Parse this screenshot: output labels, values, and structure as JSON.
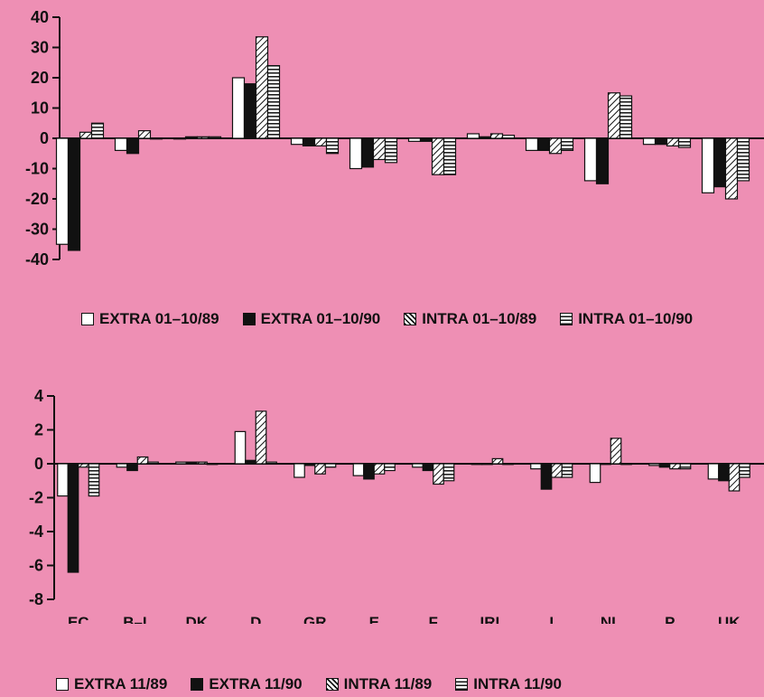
{
  "chart_data": [
    {
      "type": "bar",
      "categories": [
        "EC",
        "B–L",
        "DK",
        "D",
        "GR",
        "E",
        "F",
        "IRL",
        "I",
        "NL",
        "P",
        "UK"
      ],
      "ylim": [
        -40,
        40
      ],
      "yticks": [
        40,
        30,
        20,
        10,
        0,
        -10,
        -20,
        -30,
        -40
      ],
      "series": [
        {
          "name": "EXTRA 01–10/89",
          "pattern": "white",
          "values": [
            -35,
            -4,
            0,
            20,
            -2,
            -10,
            -1,
            1.5,
            -4,
            -14,
            -2,
            -18
          ]
        },
        {
          "name": "EXTRA 01–10/90",
          "pattern": "black",
          "values": [
            -37,
            -5,
            0.5,
            18,
            -2.5,
            -9.5,
            -1,
            0.5,
            -4,
            -15,
            -2,
            -16
          ]
        },
        {
          "name": "INTRA 01–10/89",
          "pattern": "diagonal",
          "values": [
            2,
            2.5,
            0.5,
            33.5,
            -2.5,
            -7,
            -12,
            1.5,
            -5,
            15,
            -2.5,
            -20
          ]
        },
        {
          "name": "INTRA 01–10/90",
          "pattern": "horizontal",
          "values": [
            5,
            0,
            0.5,
            24,
            -5,
            -8,
            -12,
            1,
            -4,
            14,
            -3,
            -14
          ]
        }
      ]
    },
    {
      "type": "bar",
      "categories": [
        "EC",
        "B–L",
        "DK",
        "D",
        "GR",
        "E",
        "F",
        "IRL",
        "I",
        "NL",
        "P",
        "UK"
      ],
      "ylim": [
        -8,
        4
      ],
      "yticks": [
        4,
        2,
        0,
        -2,
        -4,
        -6,
        -8
      ],
      "series": [
        {
          "name": "EXTRA 11/89",
          "pattern": "white",
          "values": [
            -1.9,
            -0.2,
            0.1,
            1.9,
            -0.8,
            -0.7,
            -0.2,
            0,
            -0.3,
            -1.1,
            -0.1,
            -0.9
          ]
        },
        {
          "name": "EXTRA 11/90",
          "pattern": "black",
          "values": [
            -6.4,
            -0.4,
            0.1,
            0.2,
            -0.1,
            -0.9,
            -0.4,
            0,
            -1.5,
            0,
            -0.2,
            -1
          ]
        },
        {
          "name": "INTRA 11/89",
          "pattern": "diagonal",
          "values": [
            -0.2,
            0.4,
            0.1,
            3.1,
            -0.6,
            -0.6,
            -1.2,
            0.3,
            -0.8,
            1.5,
            -0.3,
            -1.6
          ]
        },
        {
          "name": "INTRA 11/90",
          "pattern": "horizontal",
          "values": [
            -1.9,
            0.1,
            0,
            0.1,
            -0.2,
            -0.4,
            -1,
            0,
            -0.8,
            0,
            -0.3,
            -0.8
          ]
        }
      ]
    }
  ]
}
